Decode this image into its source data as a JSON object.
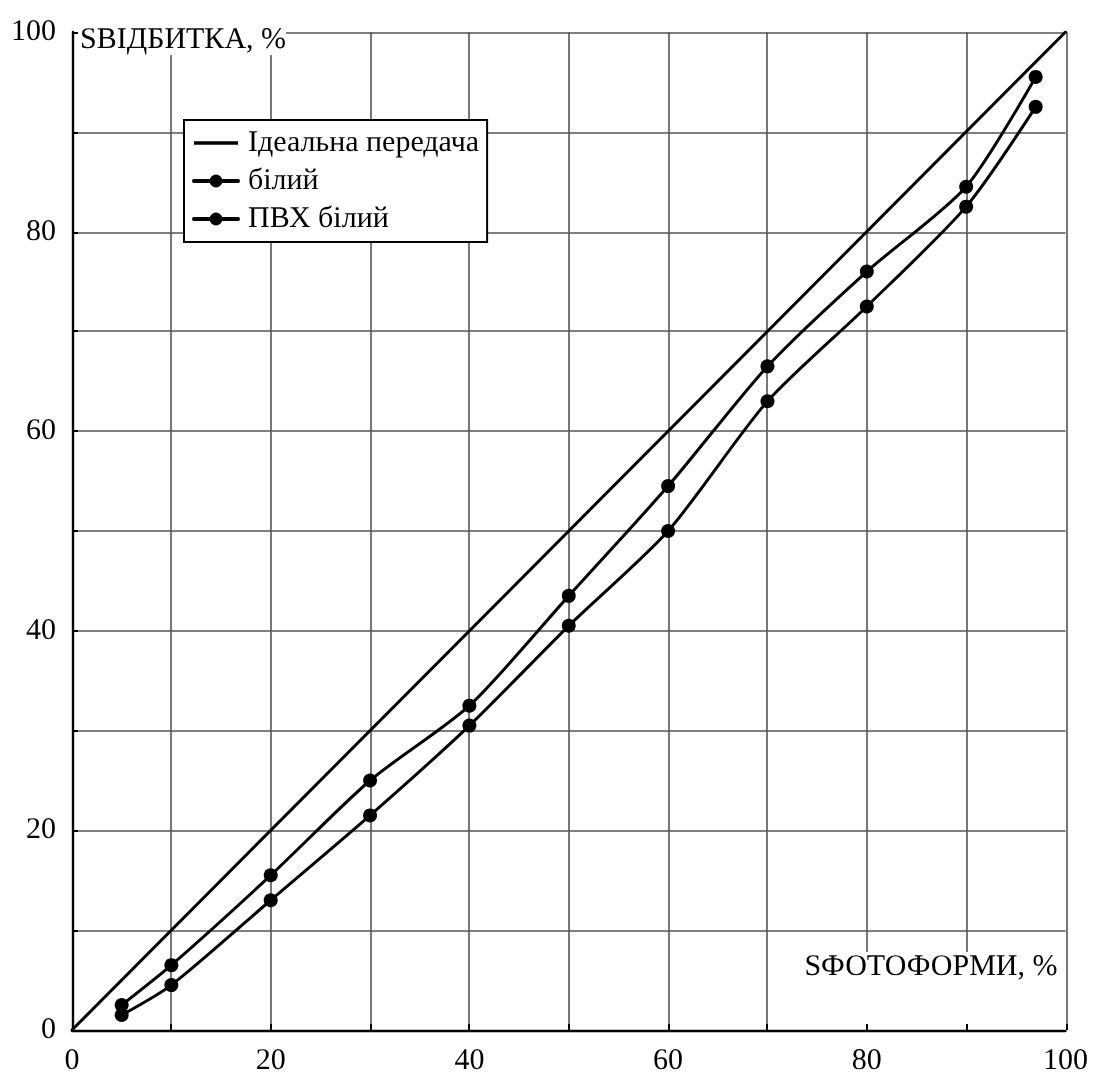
{
  "chart_data": {
    "type": "line",
    "xlabel": "SФОТОФОРМИ, %",
    "ylabel": "SВІДБИТКА, %",
    "xlim": [
      0,
      100
    ],
    "ylim": [
      0,
      100
    ],
    "xticks": [
      0,
      {
        "value": 10,
        "label": null
      },
      20,
      {
        "value": 30,
        "label": null
      },
      40,
      {
        "value": 50,
        "label": null
      },
      60,
      {
        "value": 70,
        "label": null
      },
      80,
      {
        "value": 90,
        "label": null
      },
      100
    ],
    "yticks": [
      0,
      {
        "value": 10,
        "label": null
      },
      20,
      {
        "value": 30,
        "label": null
      },
      40,
      {
        "value": 50,
        "label": null
      },
      60,
      {
        "value": 70,
        "label": null
      },
      80,
      {
        "value": 90,
        "label": null
      },
      100
    ],
    "grid": true,
    "legend": "top left",
    "marker": "circle",
    "series": [
      {
        "name": "Ідеальна передача",
        "color": "#000000",
        "x": [
          0,
          100
        ],
        "values": [
          0,
          100
        ],
        "marker": "none"
      },
      {
        "name": "білий",
        "color": "#000000",
        "x": [
          5,
          10,
          20,
          30,
          40,
          50,
          60,
          70,
          80,
          90,
          97
        ],
        "values": [
          1.5,
          4.5,
          13,
          21.5,
          30.5,
          40.5,
          50,
          63,
          72.5,
          82.5,
          92.5
        ]
      },
      {
        "name": "ПВХ білий",
        "color": "#000000",
        "x": [
          5,
          10,
          20,
          30,
          40,
          50,
          60,
          70,
          80,
          90,
          97
        ],
        "values": [
          2.5,
          6.5,
          15.5,
          25,
          32.5,
          43.5,
          54.5,
          66.5,
          76,
          84.5,
          95.5
        ]
      }
    ]
  }
}
